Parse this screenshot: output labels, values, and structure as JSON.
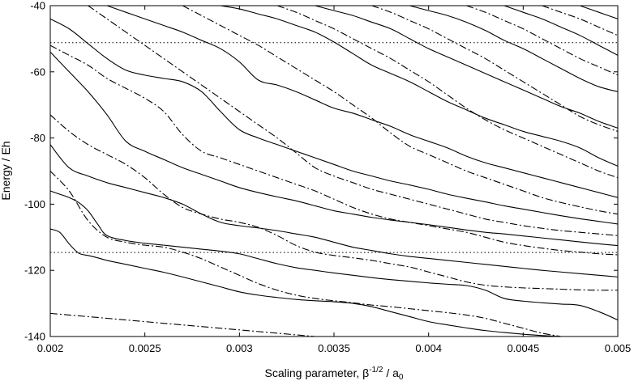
{
  "chart_data": {
    "type": "line",
    "title": "",
    "xlabel": {
      "prefix": "Scaling parameter, β",
      "sup": "-1/2",
      "middle": " / a",
      "sub": "0"
    },
    "ylabel": "Energy / Eh",
    "xlim": [
      0.002,
      0.005
    ],
    "ylim": [
      -140,
      -40
    ],
    "xticks": [
      0.002,
      0.0025,
      0.003,
      0.0035,
      0.004,
      0.0045,
      0.005
    ],
    "xtick_labels": [
      "0.002",
      "0.0025",
      "0.003",
      "0.0035",
      "0.004",
      "0.0045",
      "0.005"
    ],
    "yticks": [
      -140,
      -120,
      -100,
      -80,
      -60,
      -40
    ],
    "ytick_labels": [
      "-140",
      "-120",
      "-100",
      "-80",
      "-60",
      "-40"
    ],
    "grid": false,
    "line_color": "#000000",
    "reference_lines": [
      {
        "y": -51.2,
        "style": "dotted"
      },
      {
        "y": -114.6,
        "style": "dotted"
      }
    ],
    "series": [
      {
        "style": "solid",
        "x": [
          0.002,
          0.00205,
          0.0021,
          0.00215,
          0.0022,
          0.00225,
          0.0023,
          0.0024,
          0.0025,
          0.0026,
          0.0027,
          0.0028,
          0.0029,
          0.003,
          0.0031,
          0.0032,
          0.0033,
          0.0034,
          0.0035,
          0.0036,
          0.0037,
          0.0038,
          0.0039,
          0.004,
          0.0041,
          0.0042,
          0.0043,
          0.0044,
          0.0045,
          0.0046,
          0.0047,
          0.0048,
          0.0049,
          0.005
        ],
        "y": [
          -107.5,
          -108.5,
          -112,
          -114.8,
          -115.5,
          -116.2,
          -117,
          -118.2,
          -119.4,
          -120.6,
          -122,
          -123.5,
          -125,
          -126.5,
          -127.5,
          -128.2,
          -128.8,
          -129.2,
          -129.5,
          -130,
          -131,
          -132.5,
          -134,
          -135.5,
          -136.5,
          -137.4,
          -138.2,
          -138.8,
          -139.3,
          -139.7,
          -140,
          -140.3,
          -140.6,
          -141
        ]
      },
      {
        "style": "solid",
        "x": [
          0.002,
          0.00205,
          0.0021,
          0.00215,
          0.0022,
          0.00225,
          0.0023,
          0.0024,
          0.0025,
          0.0026,
          0.0027,
          0.0028,
          0.0029,
          0.003,
          0.0031,
          0.0032,
          0.0033,
          0.0034,
          0.0035,
          0.0036,
          0.0037,
          0.0038,
          0.0039,
          0.004,
          0.0041,
          0.0042,
          0.0043,
          0.0044,
          0.0045,
          0.0046,
          0.0047,
          0.0048,
          0.0049,
          0.005
        ],
        "y": [
          -96,
          -97,
          -98,
          -99.5,
          -102,
          -106,
          -109.5,
          -111,
          -111.8,
          -112.4,
          -113,
          -113.6,
          -114.2,
          -115,
          -116.5,
          -118,
          -119.2,
          -120,
          -120.8,
          -121.5,
          -122.2,
          -122.8,
          -123.3,
          -123.8,
          -124.2,
          -124.6,
          -126,
          -128.5,
          -129.3,
          -129.8,
          -130.2,
          -130.6,
          -132.5,
          -135
        ]
      },
      {
        "style": "solid",
        "x": [
          0.002,
          0.0021,
          0.0022,
          0.0023,
          0.0024,
          0.0025,
          0.0026,
          0.0027,
          0.0028,
          0.0029,
          0.003,
          0.0031,
          0.0032,
          0.0033,
          0.0034,
          0.0035,
          0.0036,
          0.0037,
          0.0038,
          0.0039,
          0.004,
          0.0041,
          0.0042,
          0.0043,
          0.0044,
          0.0045,
          0.0046,
          0.0047,
          0.0048,
          0.0049,
          0.005
        ],
        "y": [
          -82,
          -89,
          -91.5,
          -93.5,
          -95,
          -96.5,
          -98,
          -100,
          -103,
          -105.5,
          -106.5,
          -107.2,
          -108,
          -109,
          -110,
          -111.5,
          -113,
          -114,
          -115,
          -115.8,
          -116.4,
          -117,
          -117.6,
          -118.2,
          -118.8,
          -119.4,
          -120,
          -120.5,
          -121,
          -121.5,
          -122
        ]
      },
      {
        "style": "solid",
        "x": [
          0.002,
          0.0021,
          0.0022,
          0.0023,
          0.0024,
          0.0025,
          0.0026,
          0.0027,
          0.0028,
          0.0029,
          0.003,
          0.0031,
          0.0032,
          0.0033,
          0.0034,
          0.0035,
          0.0036,
          0.0037,
          0.0038,
          0.0039,
          0.004,
          0.0041,
          0.0042,
          0.0043,
          0.0044,
          0.0045,
          0.0046,
          0.0047,
          0.0048,
          0.0049,
          0.005
        ],
        "y": [
          -54,
          -60,
          -66,
          -73,
          -81,
          -84,
          -86.5,
          -89,
          -91,
          -93,
          -95,
          -96.5,
          -97.8,
          -99,
          -100.5,
          -102,
          -103,
          -104,
          -104.8,
          -105.5,
          -106.2,
          -107,
          -107.8,
          -108.5,
          -109,
          -109.6,
          -110.2,
          -110.8,
          -111.4,
          -112,
          -112.5
        ]
      },
      {
        "style": "solid",
        "x": [
          0.002,
          0.0021,
          0.0022,
          0.0023,
          0.0024,
          0.0025,
          0.0026,
          0.0027,
          0.0028,
          0.0029,
          0.003,
          0.0031,
          0.0032,
          0.0033,
          0.0034,
          0.0035,
          0.0036,
          0.0037,
          0.0038,
          0.0039,
          0.004,
          0.0041,
          0.0042,
          0.0043,
          0.0044,
          0.0045,
          0.0046,
          0.0047,
          0.0048,
          0.0049,
          0.005
        ],
        "y": [
          -44,
          -47,
          -51.5,
          -56,
          -59.5,
          -61,
          -62,
          -63,
          -66,
          -72,
          -77.5,
          -80,
          -82,
          -84,
          -86,
          -88,
          -90,
          -91.5,
          -93,
          -94.2,
          -95.5,
          -97,
          -98.2,
          -99.3,
          -100.5,
          -101.5,
          -102.5,
          -103.5,
          -104.4,
          -105.2,
          -106
        ]
      },
      {
        "style": "solid",
        "x": [
          0.0023,
          0.0024,
          0.0025,
          0.0026,
          0.0027,
          0.0028,
          0.0029,
          0.003,
          0.0031,
          0.0032,
          0.0033,
          0.0034,
          0.0035,
          0.0036,
          0.0037,
          0.0038,
          0.0039,
          0.004,
          0.0041,
          0.0042,
          0.0043,
          0.0044,
          0.0045,
          0.0046,
          0.0047,
          0.0048,
          0.0049,
          0.005
        ],
        "y": [
          -40,
          -42,
          -44,
          -46,
          -48,
          -50.5,
          -53,
          -57,
          -62.5,
          -64,
          -66,
          -68.5,
          -71,
          -72.5,
          -74.5,
          -76.5,
          -79,
          -81,
          -83,
          -85.5,
          -87.5,
          -89,
          -90.5,
          -92,
          -93.5,
          -95,
          -96.5,
          -98
        ]
      },
      {
        "style": "solid",
        "x": [
          0.0029,
          0.003,
          0.0031,
          0.0032,
          0.0033,
          0.0034,
          0.0035,
          0.0036,
          0.0037,
          0.0038,
          0.0039,
          0.004,
          0.0041,
          0.0042,
          0.0043,
          0.0044,
          0.0045,
          0.0046,
          0.0047,
          0.0048,
          0.0049,
          0.005
        ],
        "y": [
          -40,
          -41,
          -42.5,
          -44,
          -46,
          -48,
          -51,
          -54.5,
          -58,
          -60.5,
          -63,
          -66,
          -69,
          -71.5,
          -74,
          -76,
          -78,
          -79.5,
          -81,
          -83,
          -86,
          -88.5
        ]
      },
      {
        "style": "solid",
        "x": [
          0.0034,
          0.0035,
          0.0036,
          0.0037,
          0.0038,
          0.0039,
          0.004,
          0.0041,
          0.0042,
          0.0043,
          0.0044,
          0.0045,
          0.0046,
          0.0047,
          0.0048,
          0.0049,
          0.005
        ],
        "y": [
          -40,
          -41.5,
          -43,
          -45,
          -47,
          -50,
          -53,
          -55.5,
          -58,
          -60.5,
          -63,
          -65.5,
          -68,
          -70.5,
          -72.5,
          -75,
          -77
        ]
      },
      {
        "style": "solid",
        "x": [
          0.0039,
          0.004,
          0.0041,
          0.0042,
          0.0043,
          0.0044,
          0.0045,
          0.0046,
          0.0047,
          0.0048,
          0.0049,
          0.005
        ],
        "y": [
          -40,
          -41.5,
          -43,
          -45,
          -47.5,
          -50.5,
          -53,
          -56,
          -59,
          -62,
          -64.5,
          -66
        ]
      },
      {
        "style": "solid",
        "x": [
          0.0044,
          0.0045,
          0.0046,
          0.0047,
          0.0048,
          0.0049,
          0.005
        ],
        "y": [
          -40,
          -42,
          -44,
          -46.5,
          -49,
          -52,
          -55
        ]
      },
      {
        "style": "solid",
        "x": [
          0.0048,
          0.0049,
          0.005
        ],
        "y": [
          -40,
          -42,
          -44
        ]
      },
      {
        "style": "dashdot",
        "x": [
          0.002,
          0.0021,
          0.0022,
          0.0023,
          0.0024,
          0.0025,
          0.0026,
          0.0027,
          0.0028,
          0.0029,
          0.003,
          0.0031,
          0.0032,
          0.0033,
          0.0034,
          0.0035,
          0.0036,
          0.0037,
          0.0038,
          0.0039,
          0.004,
          0.0041,
          0.0042,
          0.0043,
          0.0044,
          0.0045,
          0.0046,
          0.0047,
          0.0048,
          0.0049,
          0.005
        ],
        "y": [
          -133,
          -133.5,
          -134,
          -134.5,
          -135,
          -135.5,
          -136,
          -136.5,
          -137,
          -137.5,
          -138,
          -138.5,
          -139,
          -139.5,
          -140,
          -140.5,
          -141,
          -141.5,
          -142,
          -142.5,
          -143,
          -143.5,
          -144,
          -144.5,
          -145,
          -145.5,
          -146,
          -146.5,
          -147,
          -147.5,
          -148
        ]
      },
      {
        "style": "dashdot",
        "x": [
          0.002,
          0.0021,
          0.0022,
          0.0023,
          0.0024,
          0.0025,
          0.0026,
          0.0027,
          0.0028,
          0.0029,
          0.003,
          0.0031,
          0.0032,
          0.0033,
          0.0034,
          0.0035,
          0.0036,
          0.0037,
          0.0038,
          0.0039,
          0.004,
          0.0041,
          0.0042,
          0.0043,
          0.0044,
          0.0045,
          0.0046,
          0.0047,
          0.0048,
          0.0049,
          0.005
        ],
        "y": [
          -90,
          -96,
          -105,
          -110,
          -111.5,
          -112.4,
          -113,
          -114.5,
          -116.5,
          -119,
          -121.5,
          -124,
          -126,
          -127.5,
          -128.5,
          -129.2,
          -129.8,
          -130.5,
          -131,
          -131.6,
          -132.2,
          -132.8,
          -133.5,
          -134.5,
          -136,
          -137.5,
          -139,
          -140,
          -141,
          -142,
          -143
        ]
      },
      {
        "style": "dashdot",
        "x": [
          0.002,
          0.0021,
          0.0022,
          0.0023,
          0.0024,
          0.0025,
          0.0026,
          0.0027,
          0.0028,
          0.0029,
          0.003,
          0.0031,
          0.0032,
          0.0033,
          0.0034,
          0.0035,
          0.0036,
          0.0037,
          0.0038,
          0.0039,
          0.004,
          0.0041,
          0.0042,
          0.0043,
          0.0044,
          0.0045,
          0.0046,
          0.0047,
          0.0048,
          0.0049,
          0.005
        ],
        "y": [
          -73,
          -78,
          -82,
          -85,
          -88,
          -92,
          -97,
          -101,
          -103,
          -104.5,
          -105.5,
          -107,
          -109.5,
          -112.5,
          -114.5,
          -115.5,
          -116.2,
          -117,
          -118,
          -119,
          -120.5,
          -122,
          -123.5,
          -124.5,
          -125,
          -125.3,
          -125.5,
          -125.7,
          -125.9,
          -126,
          -126
        ]
      },
      {
        "style": "dashdot",
        "x": [
          0.002,
          0.0021,
          0.0022,
          0.0023,
          0.0024,
          0.0025,
          0.0026,
          0.0027,
          0.0028,
          0.0029,
          0.003,
          0.0031,
          0.0032,
          0.0033,
          0.0034,
          0.0035,
          0.0036,
          0.0037,
          0.0038,
          0.0039,
          0.004,
          0.0041,
          0.0042,
          0.0043,
          0.0044,
          0.0045,
          0.0046,
          0.0047,
          0.0048,
          0.0049,
          0.005
        ],
        "y": [
          -52,
          -55,
          -58,
          -62,
          -65,
          -68,
          -72,
          -79,
          -84,
          -86,
          -88,
          -90,
          -92,
          -94,
          -96,
          -98.5,
          -101,
          -103,
          -104.5,
          -105.5,
          -106.5,
          -107.5,
          -108.5,
          -110,
          -111.5,
          -112.5,
          -113.3,
          -114,
          -114.5,
          -115,
          -115.3
        ]
      },
      {
        "style": "dashdot",
        "x": [
          0.0022,
          0.0023,
          0.0024,
          0.0025,
          0.0026,
          0.0027,
          0.0028,
          0.0029,
          0.003,
          0.0031,
          0.0032,
          0.0033,
          0.0034,
          0.0035,
          0.0036,
          0.0037,
          0.0038,
          0.0039,
          0.004,
          0.0041,
          0.0042,
          0.0043,
          0.0044,
          0.0045,
          0.0046,
          0.0047,
          0.0048,
          0.0049,
          0.005
        ],
        "y": [
          -40,
          -44,
          -48,
          -52,
          -56,
          -60,
          -64,
          -68,
          -72,
          -76,
          -80,
          -84.5,
          -89,
          -91.5,
          -93.5,
          -95.5,
          -97,
          -98.5,
          -100,
          -101.5,
          -103,
          -104.5,
          -105.5,
          -106.5,
          -107.3,
          -108,
          -108.5,
          -109,
          -109.5
        ]
      },
      {
        "style": "dashdot",
        "x": [
          0.0027,
          0.0028,
          0.0029,
          0.003,
          0.0031,
          0.0032,
          0.0033,
          0.0034,
          0.0035,
          0.0036,
          0.0037,
          0.0038,
          0.0039,
          0.004,
          0.0041,
          0.0042,
          0.0043,
          0.0044,
          0.0045,
          0.0046,
          0.0047,
          0.0048,
          0.0049,
          0.005
        ],
        "y": [
          -40,
          -43,
          -46,
          -49,
          -52,
          -55.5,
          -59,
          -62.5,
          -66,
          -70,
          -74,
          -78.5,
          -82.5,
          -85,
          -87.5,
          -90,
          -92,
          -94,
          -96,
          -98,
          -99.5,
          -100.8,
          -102,
          -103
        ]
      },
      {
        "style": "dashdot",
        "x": [
          0.0032,
          0.0033,
          0.0034,
          0.0035,
          0.0036,
          0.0037,
          0.0038,
          0.0039,
          0.004,
          0.0041,
          0.0042,
          0.0043,
          0.0044,
          0.0045,
          0.0046,
          0.0047,
          0.0048,
          0.0049,
          0.005
        ],
        "y": [
          -40,
          -42,
          -44.5,
          -47,
          -50,
          -53,
          -56,
          -59.5,
          -63,
          -67,
          -71,
          -74.5,
          -77.5,
          -80,
          -82.5,
          -85,
          -87.5,
          -90,
          -92
        ]
      },
      {
        "style": "dashdot",
        "x": [
          0.0037,
          0.0038,
          0.0039,
          0.004,
          0.0041,
          0.0042,
          0.0043,
          0.0044,
          0.0045,
          0.0046,
          0.0047,
          0.0048,
          0.0049,
          0.005
        ],
        "y": [
          -40,
          -42,
          -44.5,
          -47,
          -50,
          -53,
          -56,
          -59.5,
          -63,
          -66.5,
          -70,
          -73.5,
          -76,
          -78
        ]
      },
      {
        "style": "dashdot",
        "x": [
          0.0042,
          0.0043,
          0.0044,
          0.0045,
          0.0046,
          0.0047,
          0.0048,
          0.0049,
          0.005
        ],
        "y": [
          -40,
          -42,
          -44.5,
          -47,
          -50,
          -53,
          -56,
          -58.5,
          -61
        ]
      },
      {
        "style": "dashdot",
        "x": [
          0.0046,
          0.0047,
          0.0048,
          0.0049,
          0.005
        ],
        "y": [
          -40,
          -42,
          -44,
          -46.5,
          -49
        ]
      }
    ]
  }
}
